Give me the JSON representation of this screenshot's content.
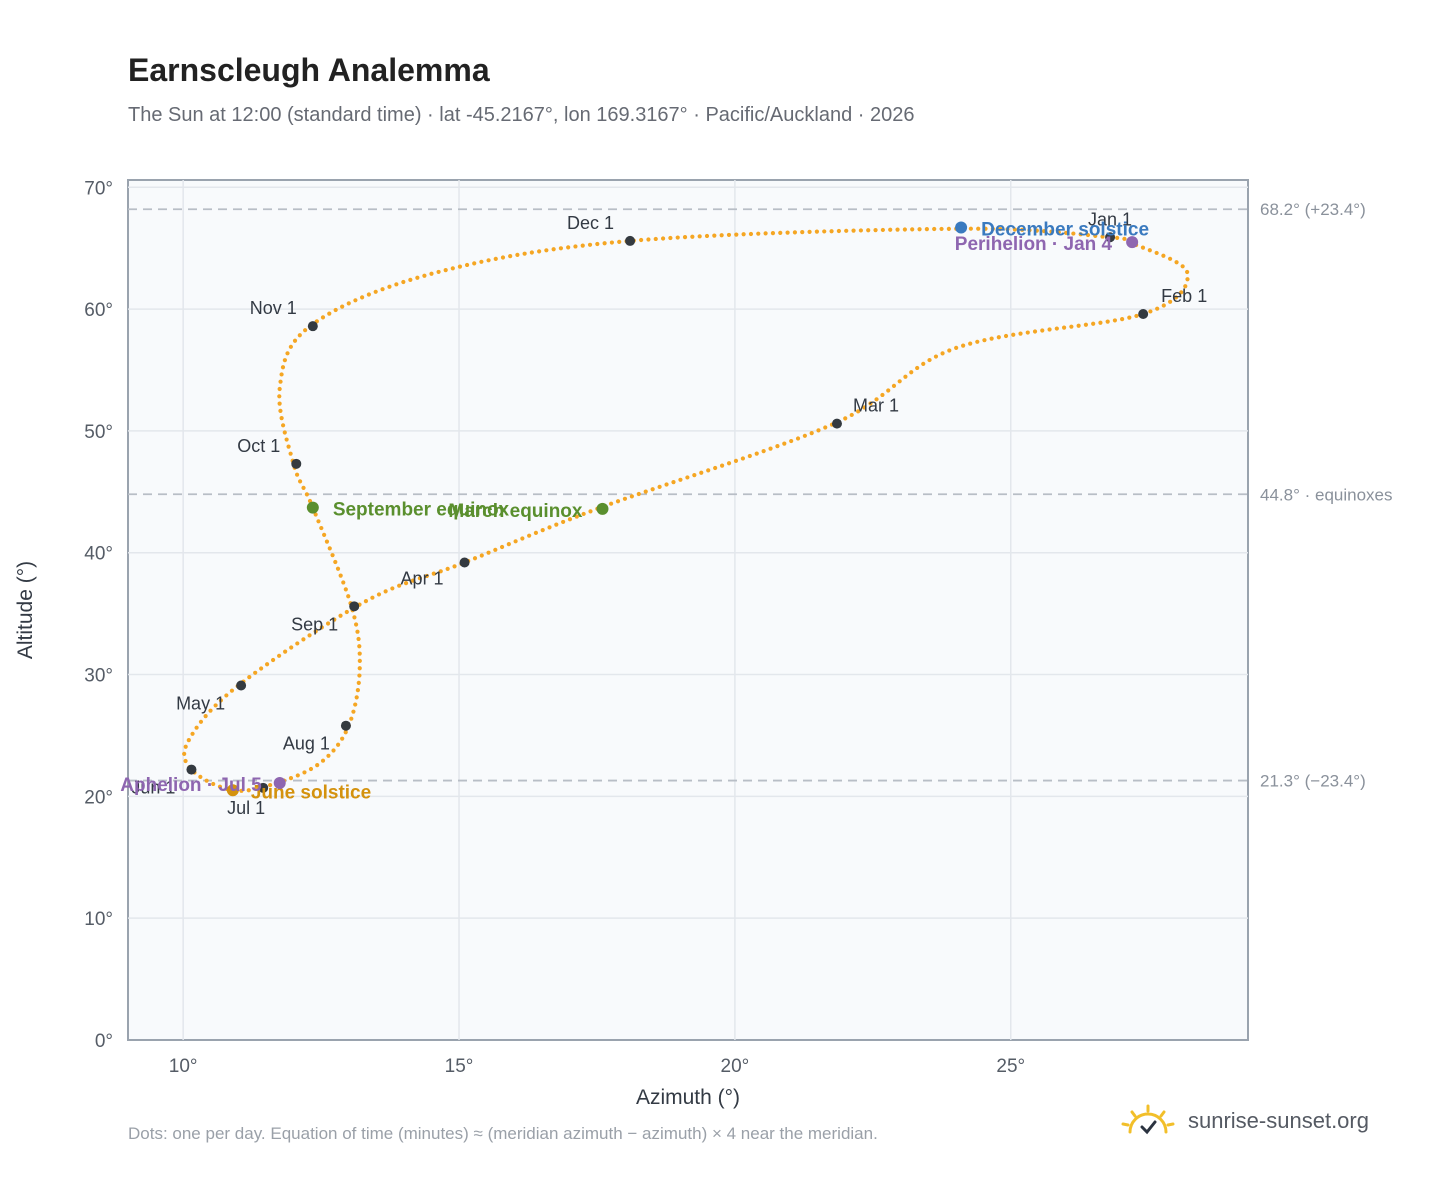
{
  "header": {
    "title": "Earnscleugh Analemma",
    "subtitle": "The Sun at 12:00 (standard time) · lat -45.2167°, lon 169.3167° · Pacific/Auckland · 2026"
  },
  "footer": {
    "note": "Dots: one per day. Equation of time (minutes) ≈ (meridian azimuth − azimuth) × 4 near the meridian.",
    "brand": "sunrise-sunset.org"
  },
  "colors": {
    "curve": "#f5a623",
    "month_marker": "#343a40",
    "equinox": "#5a8f2e",
    "june_solstice": "#d4920e",
    "december_solstice": "#3a7abf",
    "apsis": "#8e66b0",
    "reference_line": "#b8bec6",
    "plot_bg": "#f8fafc",
    "grid": "#e3e7ec"
  },
  "chart_data": {
    "type": "scatter",
    "title": "Earnscleugh Analemma",
    "xlabel": "Azimuth (°)",
    "ylabel": "Altitude (°)",
    "xlim": [
      9,
      29.3
    ],
    "ylim": [
      0,
      70.6
    ],
    "x_ticks": [
      {
        "value": 10,
        "label": "10°"
      },
      {
        "value": 15,
        "label": "15°"
      },
      {
        "value": 20,
        "label": "20°"
      },
      {
        "value": 25,
        "label": "25°"
      }
    ],
    "y_ticks": [
      {
        "value": 0,
        "label": "0°"
      },
      {
        "value": 10,
        "label": "10°"
      },
      {
        "value": 20,
        "label": "20°"
      },
      {
        "value": 30,
        "label": "30°"
      },
      {
        "value": 40,
        "label": "40°"
      },
      {
        "value": 50,
        "label": "50°"
      },
      {
        "value": 60,
        "label": "60°"
      },
      {
        "value": 70,
        "label": "70°"
      }
    ],
    "grid": true,
    "analemma_path": [
      [
        27.15,
        65.5
      ],
      [
        28.2,
        63.0
      ],
      [
        27.4,
        59.6
      ],
      [
        24.0,
        56.8
      ],
      [
        21.8,
        50.6
      ],
      [
        17.5,
        43.6
      ],
      [
        15.1,
        39.2
      ],
      [
        13.3,
        36.0
      ],
      [
        11.0,
        29.1
      ],
      [
        10.1,
        24.6
      ],
      [
        10.15,
        22.2
      ],
      [
        10.9,
        20.5
      ],
      [
        11.7,
        21.1
      ],
      [
        12.5,
        22.8
      ],
      [
        13.0,
        25.8
      ],
      [
        13.2,
        30.5
      ],
      [
        13.05,
        35.6
      ],
      [
        12.35,
        43.7
      ],
      [
        12.0,
        47.3
      ],
      [
        11.75,
        53.5
      ],
      [
        12.3,
        58.6
      ],
      [
        14.5,
        62.9
      ],
      [
        18.1,
        65.6
      ],
      [
        24.1,
        66.6
      ],
      [
        26.8,
        65.9
      ],
      [
        27.15,
        65.5
      ]
    ],
    "month_markers": [
      {
        "label": "Jan 1",
        "az": 26.8,
        "alt": 65.9
      },
      {
        "label": "Feb 1",
        "az": 27.4,
        "alt": 59.6
      },
      {
        "label": "Mar 1",
        "az": 21.85,
        "alt": 50.6
      },
      {
        "label": "Apr 1",
        "az": 15.1,
        "alt": 39.2
      },
      {
        "label": "May 1",
        "az": 11.05,
        "alt": 29.1
      },
      {
        "label": "Jun 1",
        "az": 10.15,
        "alt": 22.2
      },
      {
        "label": "Jul 1",
        "az": 11.45,
        "alt": 20.7
      },
      {
        "label": "Aug 1",
        "az": 12.95,
        "alt": 25.8
      },
      {
        "label": "Sep 1",
        "az": 13.1,
        "alt": 35.6
      },
      {
        "label": "Oct 1",
        "az": 12.05,
        "alt": 47.3
      },
      {
        "label": "Nov 1",
        "az": 12.35,
        "alt": 58.6
      },
      {
        "label": "Dec 1",
        "az": 18.1,
        "alt": 65.6
      }
    ],
    "events": [
      {
        "label": "December solstice",
        "az": 24.1,
        "alt": 66.7,
        "kind": "december_solstice"
      },
      {
        "label": "Perihelion · Jan 4",
        "az": 27.2,
        "alt": 65.5,
        "kind": "apsis"
      },
      {
        "label": "March equinox",
        "az": 17.6,
        "alt": 43.6,
        "kind": "equinox"
      },
      {
        "label": "September equinox",
        "az": 12.35,
        "alt": 43.7,
        "kind": "equinox"
      },
      {
        "label": "June solstice",
        "az": 10.9,
        "alt": 20.5,
        "kind": "june_solstice"
      },
      {
        "label": "Aphelion · Jul 5",
        "az": 11.75,
        "alt": 21.1,
        "kind": "apsis"
      }
    ],
    "reference_lines": [
      {
        "alt": 68.2,
        "label": "68.2° (+23.4°)"
      },
      {
        "alt": 44.8,
        "label": "44.8° · equinoxes"
      },
      {
        "alt": 21.3,
        "label": "21.3° (−23.4°)"
      }
    ]
  }
}
